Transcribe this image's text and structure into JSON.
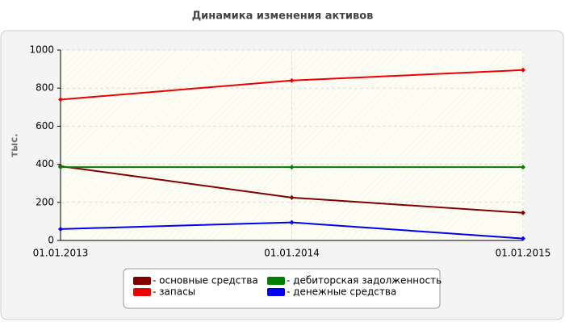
{
  "chart_data": {
    "type": "line",
    "title": "Динамика изменения активов",
    "y_label": "тыс.",
    "categories": [
      "01.01.2013",
      "01.01.2014",
      "01.01.2015"
    ],
    "series": [
      {
        "name": "- основные средства",
        "color": "#800000",
        "values": [
          390,
          225,
          145
        ]
      },
      {
        "name": "- запасы",
        "color": "#ee0000",
        "values": [
          740,
          840,
          895
        ]
      },
      {
        "name": "- дебиторская задолженность",
        "color": "#008000",
        "values": [
          385,
          385,
          385
        ]
      },
      {
        "name": "- денежные средства",
        "color": "#0000ee",
        "values": [
          60,
          95,
          10
        ]
      }
    ],
    "ylim": [
      0,
      1000
    ],
    "yticks": [
      0,
      200,
      400,
      600,
      800,
      1000
    ],
    "grid": true
  }
}
